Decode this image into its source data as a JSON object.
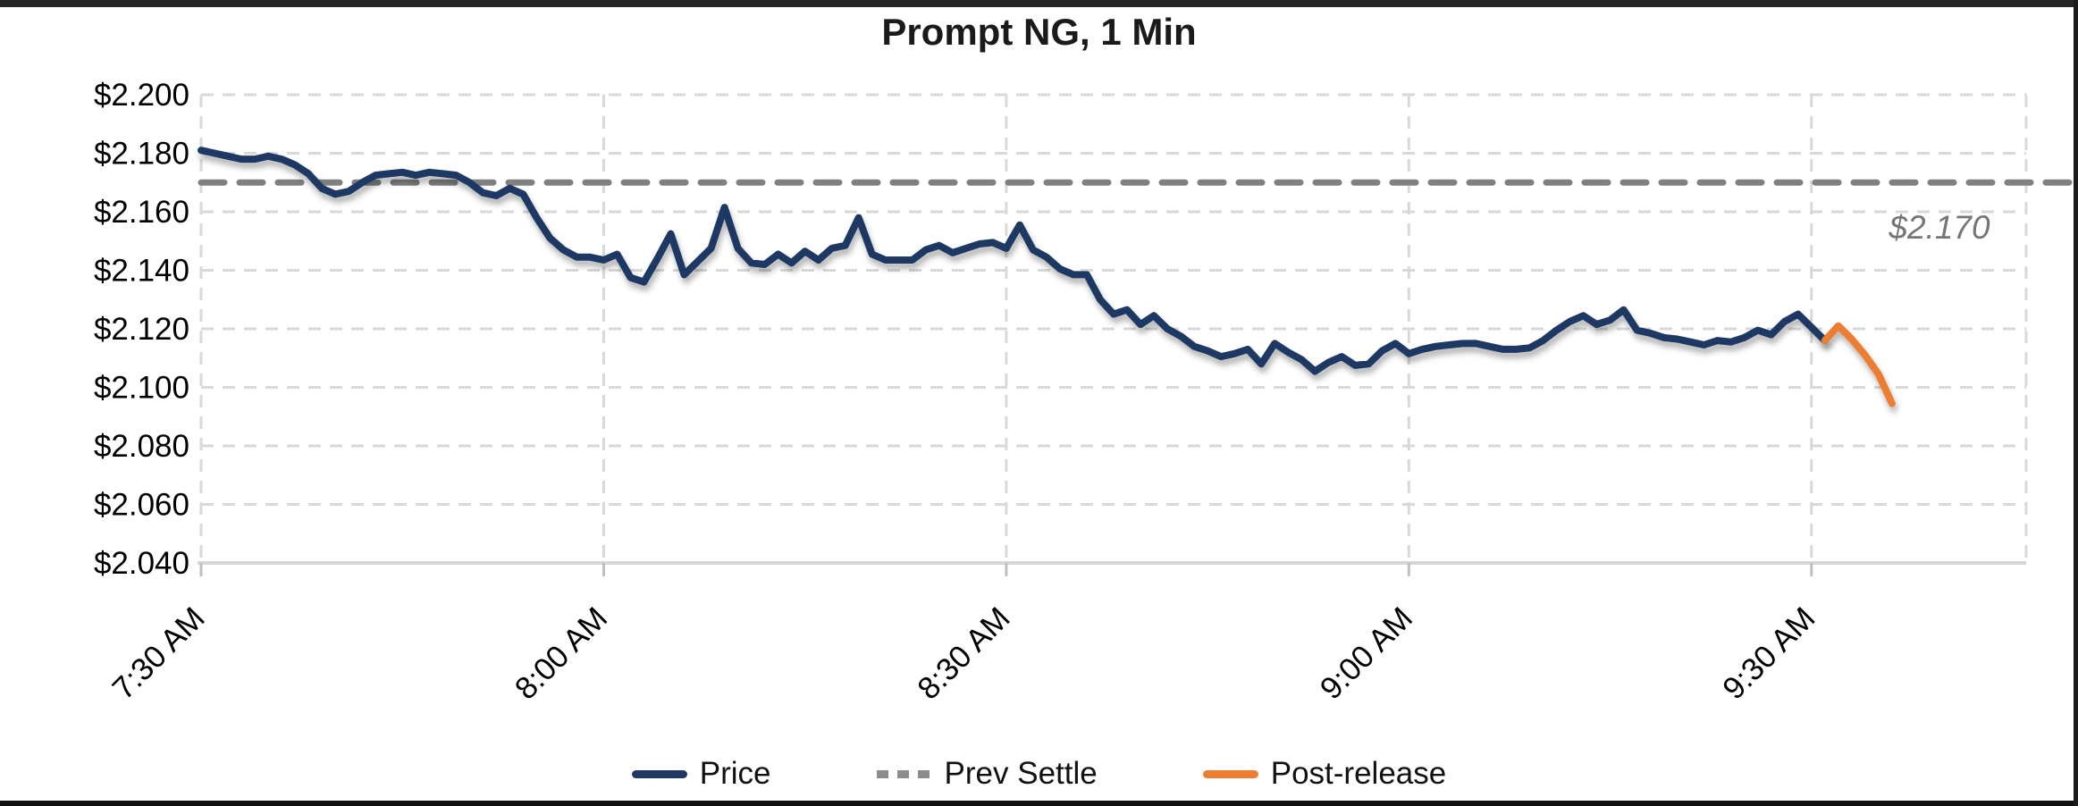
{
  "title": "Prompt NG, 1 Min",
  "annotation": {
    "text": "$2.170",
    "color": "#767676",
    "italic": true
  },
  "legend": {
    "items": [
      {
        "label": "Price",
        "color": "#1F3864",
        "style": "solid"
      },
      {
        "label": "Prev Settle",
        "color": "#8c8c8c",
        "style": "dashed"
      },
      {
        "label": "Post-release",
        "color": "#ED7D31",
        "style": "solid"
      }
    ]
  },
  "colors": {
    "price_line": "#1F3864",
    "post_release_line": "#ED7D31",
    "prev_settle_line": "#808080",
    "gridline": "#D9D9D9",
    "axis_line": "#D6D6D6",
    "tick": "#BFBFBF",
    "label_text": "#000000"
  },
  "chart_data": {
    "type": "line",
    "title": "Prompt NG, 1 Min",
    "xlabel": "",
    "ylabel": "",
    "ylim": [
      2.04,
      2.2
    ],
    "y_tick_step": 0.02,
    "y_tick_labels": [
      "$2.200",
      "$2.180",
      "$2.160",
      "$2.140",
      "$2.120",
      "$2.100",
      "$2.080",
      "$2.060",
      "$2.040"
    ],
    "y_tick_values": [
      2.2,
      2.18,
      2.16,
      2.14,
      2.12,
      2.1,
      2.08,
      2.06,
      2.04
    ],
    "x_tick_labels": [
      "7:30 AM",
      "8:00 AM",
      "8:30 AM",
      "9:00 AM",
      "9:30 AM"
    ],
    "x_tick_minutes": [
      0,
      30,
      60,
      90,
      120
    ],
    "x_axis_minutes_range": [
      0,
      136
    ],
    "grid": "dashed",
    "legend_position": "bottom",
    "prev_settle_value": 2.17,
    "prev_settle_label": "$2.170",
    "series": [
      {
        "name": "Price",
        "color": "#1F3864",
        "dash": false,
        "start_minute": 0,
        "step_minutes": 1,
        "values": [
          2.181,
          2.18,
          2.179,
          2.178,
          2.178,
          2.179,
          2.178,
          2.176,
          2.173,
          2.168,
          2.166,
          2.167,
          2.17,
          2.1725,
          2.173,
          2.1735,
          2.1725,
          2.1735,
          2.173,
          2.1725,
          2.17,
          2.1665,
          2.1655,
          2.168,
          2.166,
          2.158,
          2.151,
          2.147,
          2.1445,
          2.1445,
          2.1435,
          2.1455,
          2.1375,
          2.136,
          2.144,
          2.1525,
          2.1385,
          2.143,
          2.1475,
          2.1615,
          2.1475,
          2.1425,
          2.142,
          2.1455,
          2.1425,
          2.1465,
          2.1435,
          2.1475,
          2.1485,
          2.158,
          2.1455,
          2.1435,
          2.1435,
          2.1435,
          2.147,
          2.1485,
          2.146,
          2.1475,
          2.149,
          2.1495,
          2.1475,
          2.1555,
          2.147,
          2.1445,
          2.1405,
          2.1385,
          2.1385,
          2.13,
          2.125,
          2.1265,
          2.1215,
          2.1245,
          2.12,
          2.1175,
          2.114,
          2.1125,
          2.1105,
          2.1115,
          2.113,
          2.108,
          2.115,
          2.112,
          2.1095,
          2.1055,
          2.1085,
          2.1105,
          2.1075,
          2.108,
          2.1125,
          2.115,
          2.1115,
          2.113,
          2.114,
          2.1145,
          2.115,
          2.115,
          2.114,
          2.113,
          2.113,
          2.1135,
          2.116,
          2.1195,
          2.1225,
          2.1245,
          2.1215,
          2.123,
          2.1265,
          2.1195,
          2.1185,
          2.117,
          2.1165,
          2.1155,
          2.1145,
          2.116,
          2.1155,
          2.117,
          2.1195,
          2.118,
          2.1225,
          2.125,
          2.1205,
          2.116
        ]
      },
      {
        "name": "Post-release",
        "color": "#ED7D31",
        "dash": false,
        "start_minute": 121,
        "step_minutes": 1,
        "values": [
          2.116,
          2.121,
          2.1165,
          2.111,
          2.1045,
          2.0945
        ]
      },
      {
        "name": "Prev Settle",
        "color": "#808080",
        "dash": true,
        "constant_value": 2.17
      }
    ]
  }
}
